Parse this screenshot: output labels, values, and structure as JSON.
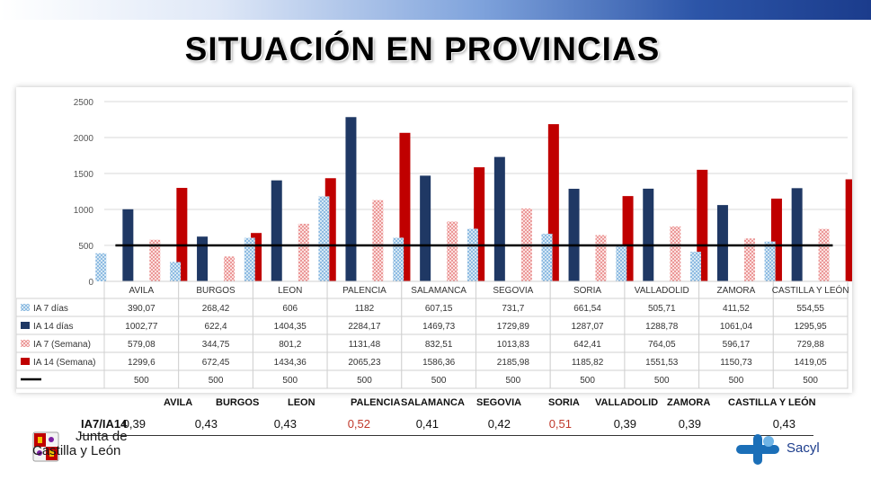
{
  "title": "SITUACIÓN EN PROVINCIAS",
  "chart_data": {
    "type": "bar",
    "categories": [
      "AVILA",
      "BURGOS",
      "LEON",
      "PALENCIA",
      "SALAMANCA",
      "SEGOVIA",
      "SORIA",
      "VALLADOLID",
      "ZAMORA",
      "CASTILLA Y LEÓN"
    ],
    "ylim": [
      0,
      2500
    ],
    "yticks": [
      "0",
      "500",
      "1000",
      "1500",
      "2000",
      "2500"
    ],
    "series": [
      {
        "name": "IA 7 días",
        "color": "#a9cde6",
        "pattern": "dots",
        "values": [
          390.07,
          268.42,
          606,
          1182,
          607.15,
          731.7,
          661.54,
          505.71,
          411.52,
          554.55
        ],
        "labels": [
          "390,07",
          "268,42",
          "606",
          "1182",
          "607,15",
          "731,7",
          "661,54",
          "505,71",
          "411,52",
          "554,55"
        ]
      },
      {
        "name": "IA 14 días",
        "color": "#1f3864",
        "pattern": "solid",
        "values": [
          1002.77,
          622.4,
          1404.35,
          2284.17,
          1469.73,
          1729.89,
          1287.07,
          1288.78,
          1061.04,
          1295.95
        ],
        "labels": [
          "1002,77",
          "622,4",
          "1404,35",
          "2284,17",
          "1469,73",
          "1729,89",
          "1287,07",
          "1288,78",
          "1061,04",
          "1295,95"
        ]
      },
      {
        "name": "IA 7 (Semana)",
        "color": "#f2b6b4",
        "pattern": "dots",
        "values": [
          579.08,
          344.75,
          801.2,
          1131.48,
          832.51,
          1013.83,
          642.41,
          764.05,
          596.17,
          729.88
        ],
        "labels": [
          "579,08",
          "344,75",
          "801,2",
          "1131,48",
          "832,51",
          "1013,83",
          "642,41",
          "764,05",
          "596,17",
          "729,88"
        ]
      },
      {
        "name": "IA 14 (Semana)",
        "color": "#c00000",
        "pattern": "solid",
        "values": [
          1299.6,
          672.45,
          1434.36,
          2065.23,
          1586.36,
          2185.98,
          1185.82,
          1551.53,
          1150.73,
          1419.05
        ],
        "labels": [
          "1299,6",
          "672,45",
          "1434,36",
          "2065,23",
          "1586,36",
          "2185,98",
          "1185,82",
          "1551,53",
          "1150,73",
          "1419,05"
        ]
      },
      {
        "name": "",
        "color": "#000000",
        "pattern": "line",
        "values": [
          500,
          500,
          500,
          500,
          500,
          500,
          500,
          500,
          500,
          500
        ],
        "labels": [
          "500",
          "500",
          "500",
          "500",
          "500",
          "500",
          "500",
          "500",
          "500",
          "500"
        ]
      }
    ]
  },
  "ratio_table": {
    "label": "IA7/IA14",
    "headers": [
      "AVILA",
      "BURGOS",
      "LEON",
      "PALENCIA",
      "SALAMANCA",
      "SEGOVIA",
      "SORIA",
      "VALLADOLID",
      "ZAMORA",
      "CASTILLA Y LEÓN"
    ],
    "values": [
      "0,39",
      "0,43",
      "0,43",
      "0,52",
      "0,41",
      "0,42",
      "0,51",
      "0,39",
      "0,39",
      "0,43"
    ],
    "highlight": [
      false,
      false,
      false,
      true,
      false,
      false,
      true,
      false,
      false,
      false
    ],
    "highlight_color": "#c0392b"
  },
  "logos": {
    "jcyl_line1": "Junta de",
    "jcyl_line2": "Castilla y León",
    "sacyl": "Sacyl"
  }
}
